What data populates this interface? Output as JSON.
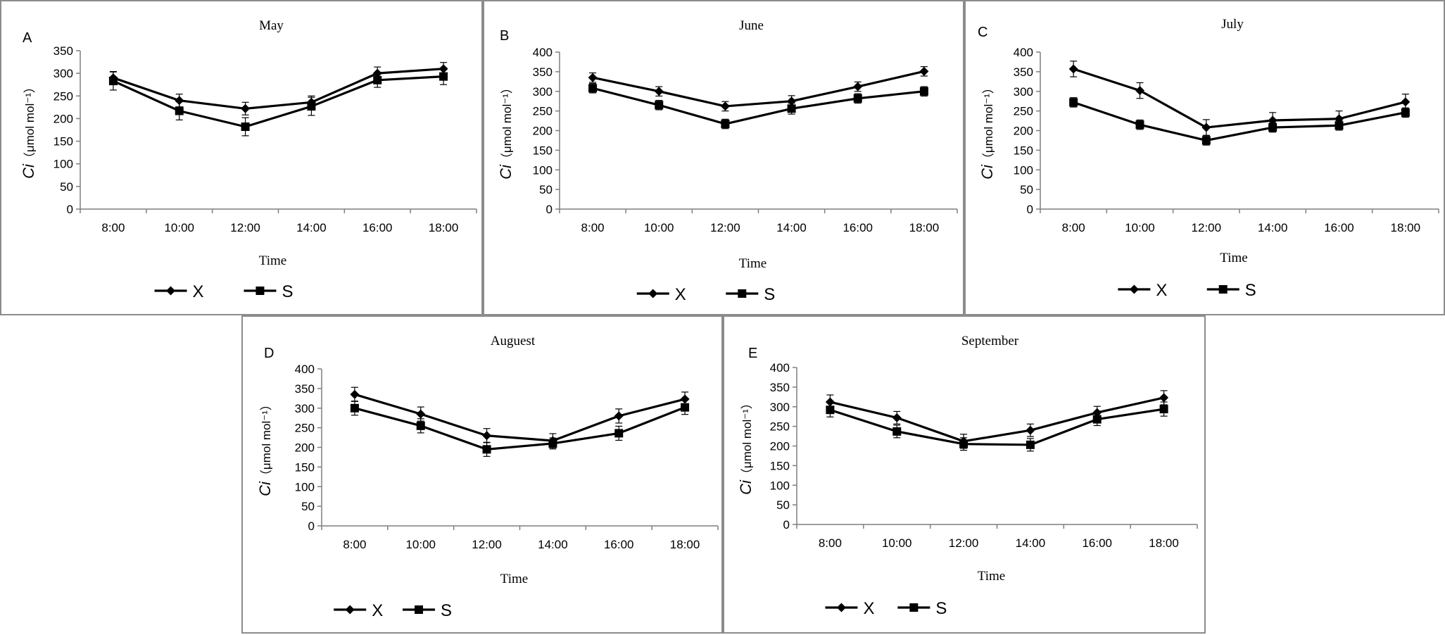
{
  "chart_data": [
    {
      "type": "line",
      "panel_letter": "A",
      "title": "May",
      "xlabel": "Time",
      "ylabel_symbol": "Ci",
      "ylabel_unit": "（μmol mol⁻¹）",
      "categories": [
        "8:00",
        "10:00",
        "12:00",
        "14:00",
        "16:00",
        "18:00"
      ],
      "ylim": [
        0,
        350
      ],
      "yticks": [
        0,
        50,
        100,
        150,
        200,
        250,
        300,
        350
      ],
      "series": [
        {
          "name": "X",
          "marker": "diamond",
          "values": [
            290,
            240,
            222,
            236,
            300,
            310
          ],
          "errors": [
            14,
            14,
            14,
            14,
            14,
            14
          ]
        },
        {
          "name": "S",
          "marker": "square",
          "values": [
            283,
            217,
            182,
            227,
            285,
            293
          ],
          "errors": [
            20,
            20,
            20,
            20,
            16,
            18
          ]
        }
      ],
      "legend": "bottom",
      "grid": false
    },
    {
      "type": "line",
      "panel_letter": "B",
      "title": "June",
      "xlabel": "Time",
      "ylabel_symbol": "Ci",
      "ylabel_unit": "（μmol mol⁻¹）",
      "categories": [
        "8:00",
        "10:00",
        "12:00",
        "14:00",
        "16:00",
        "18:00"
      ],
      "ylim": [
        0,
        400
      ],
      "yticks": [
        0,
        50,
        100,
        150,
        200,
        250,
        300,
        350,
        400
      ],
      "series": [
        {
          "name": "X",
          "marker": "diamond",
          "values": [
            335,
            300,
            262,
            275,
            312,
            351
          ],
          "errors": [
            12,
            12,
            12,
            14,
            12,
            12
          ]
        },
        {
          "name": "S",
          "marker": "square",
          "values": [
            308,
            265,
            217,
            256,
            282,
            300
          ],
          "errors": [
            12,
            12,
            12,
            14,
            12,
            12
          ]
        }
      ],
      "legend": "bottom",
      "grid": false
    },
    {
      "type": "line",
      "panel_letter": "C",
      "title": "July",
      "xlabel": "Time",
      "ylabel_symbol": "Ci",
      "ylabel_unit": "（μmol mol⁻¹）",
      "categories": [
        "8:00",
        "10:00",
        "12:00",
        "14:00",
        "16:00",
        "18:00"
      ],
      "ylim": [
        0,
        400
      ],
      "yticks": [
        0,
        50,
        100,
        150,
        200,
        250,
        300,
        350,
        400
      ],
      "series": [
        {
          "name": "X",
          "marker": "diamond",
          "values": [
            357,
            302,
            208,
            226,
            230,
            273
          ],
          "errors": [
            20,
            20,
            20,
            20,
            20,
            20
          ]
        },
        {
          "name": "S",
          "marker": "square",
          "values": [
            272,
            215,
            175,
            208,
            213,
            246
          ],
          "errors": [
            12,
            12,
            12,
            12,
            12,
            12
          ]
        }
      ],
      "legend": "bottom",
      "grid": false
    },
    {
      "type": "line",
      "panel_letter": "D",
      "title": "Auguest",
      "xlabel": "Time",
      "ylabel_symbol": "Ci",
      "ylabel_unit": "（μmol mol⁻¹）",
      "categories": [
        "8:00",
        "10:00",
        "12:00",
        "14:00",
        "16:00",
        "18:00"
      ],
      "ylim": [
        0,
        400
      ],
      "yticks": [
        0,
        50,
        100,
        150,
        200,
        250,
        300,
        350,
        400
      ],
      "series": [
        {
          "name": "X",
          "marker": "diamond",
          "values": [
            335,
            285,
            230,
            217,
            280,
            323
          ],
          "errors": [
            18,
            18,
            18,
            18,
            18,
            18
          ]
        },
        {
          "name": "S",
          "marker": "square",
          "values": [
            300,
            255,
            195,
            210,
            236,
            302
          ],
          "errors": [
            18,
            18,
            18,
            14,
            18,
            18
          ]
        }
      ],
      "legend": "bottom",
      "grid": false
    },
    {
      "type": "line",
      "panel_letter": "E",
      "title": "September",
      "xlabel": "Time",
      "ylabel_symbol": "Ci",
      "ylabel_unit": "（μmol mol⁻¹）",
      "categories": [
        "8:00",
        "10:00",
        "12:00",
        "14:00",
        "16:00",
        "18:00"
      ],
      "ylim": [
        0,
        400
      ],
      "yticks": [
        0,
        50,
        100,
        150,
        200,
        250,
        300,
        350,
        400
      ],
      "series": [
        {
          "name": "X",
          "marker": "diamond",
          "values": [
            312,
            272,
            212,
            240,
            285,
            323
          ],
          "errors": [
            18,
            16,
            18,
            16,
            16,
            18
          ]
        },
        {
          "name": "S",
          "marker": "square",
          "values": [
            292,
            237,
            205,
            203,
            268,
            294
          ],
          "errors": [
            18,
            16,
            16,
            16,
            16,
            18
          ]
        }
      ],
      "legend": "bottom",
      "grid": false
    }
  ]
}
